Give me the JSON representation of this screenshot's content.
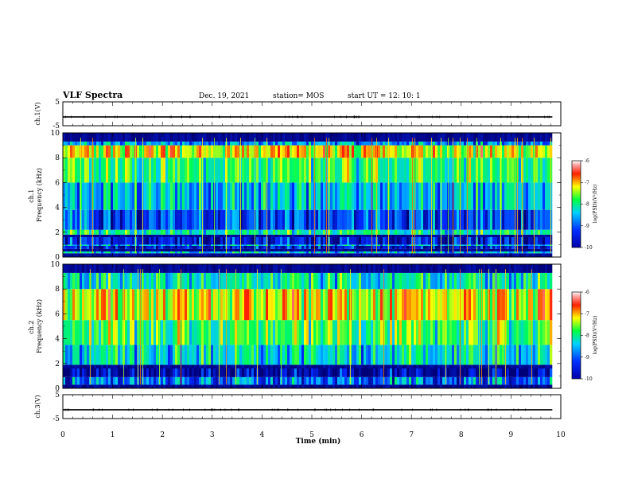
{
  "header": {
    "title": "VLF Spectra",
    "date": "Dec. 19, 2021",
    "station": "station= MOS",
    "start": "start  UT  =   12: 10: 1"
  },
  "chart_data": [
    {
      "type": "line",
      "panel": "ch1-waveform",
      "ylabel": "ch.1(V)",
      "ylim": [
        -5,
        5
      ],
      "yticks": [
        "5",
        "-5"
      ],
      "series": [
        {
          "x": [
            0,
            9.83
          ],
          "values": [
            -1.3,
            -1.3
          ]
        }
      ]
    },
    {
      "type": "heatmap",
      "panel": "ch1-spectrogram",
      "ylabel": "ch.1\nFrequency (kHz)",
      "ylim": [
        0,
        10
      ],
      "yticks": [
        "0",
        "2",
        "4",
        "6",
        "8",
        "10"
      ],
      "xlim": [
        0,
        9.83
      ],
      "colorbar": {
        "label": "log(PSD)(V²/Hz)",
        "range": [
          -10,
          -6
        ],
        "ticks": [
          "-6",
          "-7",
          "-8",
          "-9",
          "-10"
        ]
      },
      "bands": [
        {
          "fmin": 0.0,
          "fmax": 0.3,
          "level": -10
        },
        {
          "fmin": 0.3,
          "fmax": 0.45,
          "level": -8.5
        },
        {
          "fmin": 0.45,
          "fmax": 0.65,
          "level": -10
        },
        {
          "fmin": 0.65,
          "fmax": 0.9,
          "level": -9.6
        },
        {
          "fmin": 0.9,
          "fmax": 1.0,
          "level": -8.6
        },
        {
          "fmin": 1.0,
          "fmax": 1.6,
          "level": -9.5
        },
        {
          "fmin": 1.6,
          "fmax": 1.8,
          "level": -10
        },
        {
          "fmin": 1.8,
          "fmax": 2.2,
          "level": -8.2
        },
        {
          "fmin": 2.2,
          "fmax": 3.8,
          "level": -9.2
        },
        {
          "fmin": 3.8,
          "fmax": 6.0,
          "level": -8.6
        },
        {
          "fmin": 6.0,
          "fmax": 8.0,
          "level": -8.0
        },
        {
          "fmin": 8.0,
          "fmax": 9.0,
          "level": -7.3
        },
        {
          "fmin": 9.0,
          "fmax": 9.3,
          "level": -8.8
        },
        {
          "fmin": 9.3,
          "fmax": 10.0,
          "level": -10
        }
      ]
    },
    {
      "type": "heatmap",
      "panel": "ch2-spectrogram",
      "ylabel": "ch.2\nFrequency (kHz)",
      "ylim": [
        0,
        10
      ],
      "yticks": [
        "0",
        "2",
        "4",
        "6",
        "8",
        "10"
      ],
      "xlim": [
        0,
        9.83
      ],
      "colorbar": {
        "label": "log(PSD)(V²/Hz)",
        "range": [
          -10,
          -6
        ],
        "ticks": [
          "-6",
          "-7",
          "-8",
          "-9",
          "-10"
        ]
      },
      "bands": [
        {
          "fmin": 0.0,
          "fmax": 0.3,
          "level": -10
        },
        {
          "fmin": 0.3,
          "fmax": 0.9,
          "level": -9.0
        },
        {
          "fmin": 0.9,
          "fmax": 1.6,
          "level": -9.8
        },
        {
          "fmin": 1.6,
          "fmax": 1.9,
          "level": -10
        },
        {
          "fmin": 1.9,
          "fmax": 3.5,
          "level": -8.4
        },
        {
          "fmin": 3.5,
          "fmax": 5.5,
          "level": -7.9
        },
        {
          "fmin": 5.5,
          "fmax": 8.0,
          "level": -7.3
        },
        {
          "fmin": 8.0,
          "fmax": 9.3,
          "level": -8.3
        },
        {
          "fmin": 9.3,
          "fmax": 10.0,
          "level": -10
        }
      ]
    },
    {
      "type": "line",
      "panel": "ch3-waveform",
      "ylabel": "ch.3(V)",
      "ylim": [
        -5,
        5
      ],
      "yticks": [
        "5",
        "-5"
      ],
      "series": [
        {
          "x": [
            0,
            9.83
          ],
          "values": [
            -1.3,
            -1.3
          ]
        }
      ]
    }
  ],
  "xaxis": {
    "label": "Time  (min)",
    "range": [
      0,
      10
    ],
    "ticks": [
      "0",
      "1",
      "2",
      "3",
      "4",
      "5",
      "6",
      "7",
      "8",
      "9",
      "10"
    ]
  }
}
